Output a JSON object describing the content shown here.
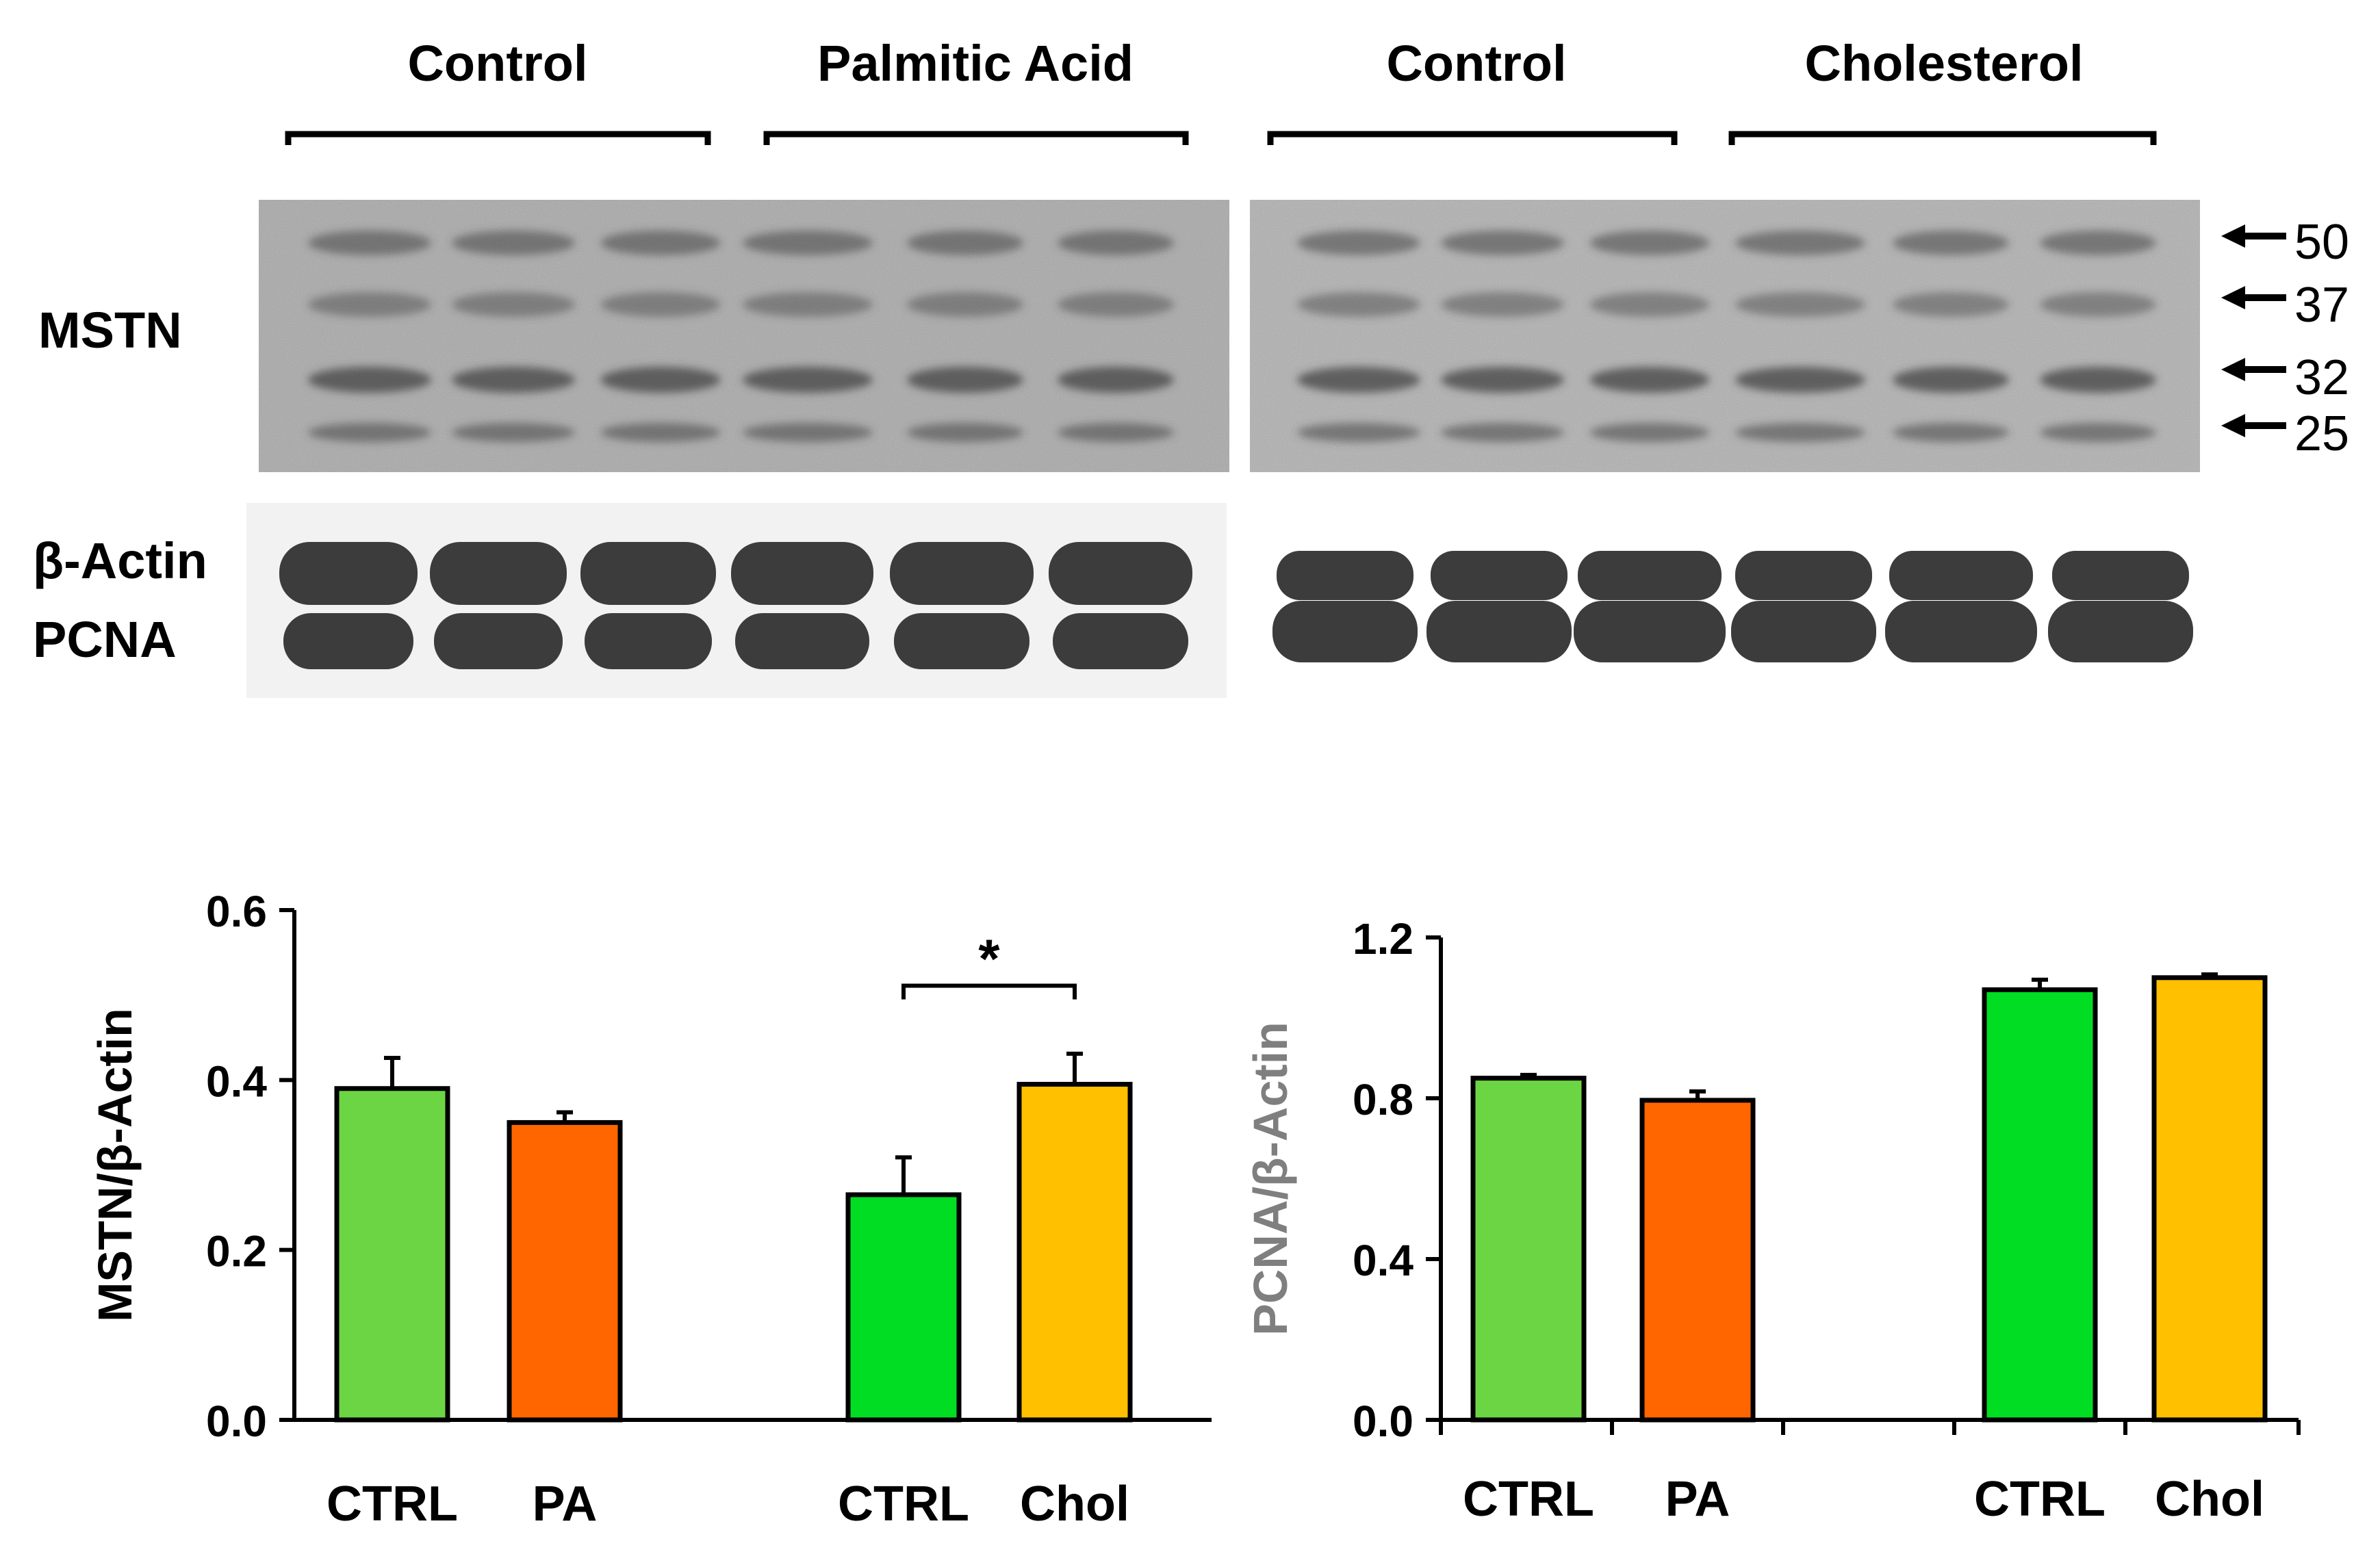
{
  "blot": {
    "group_labels": [
      "Control",
      "Palmitic Acid",
      "Control",
      "Cholesterol"
    ],
    "row_labels": {
      "mstn": "MSTN",
      "actin": "β-Actin",
      "pcna": "PCNA"
    },
    "markers": [
      "50",
      "37",
      "32",
      "25"
    ]
  },
  "colors": {
    "ctrl1": "#6cd544",
    "pa": "#ff6600",
    "ctrl2": "#00dd22",
    "chol": "#ffc000",
    "pcna_ylabel": "#7f7f7f"
  },
  "chart_data": [
    {
      "type": "bar",
      "categories": [
        "CTRL",
        "PA",
        "CTRL",
        "Chol"
      ],
      "values": [
        0.39,
        0.35,
        0.265,
        0.395
      ],
      "errors": [
        0.036,
        0.012,
        0.044,
        0.036
      ],
      "ylabel": "MSTN/β-Actin",
      "ylim": [
        0,
        0.6
      ],
      "yticks": [
        "0.0",
        "0.2",
        "0.4",
        "0.6"
      ],
      "significance": "*",
      "colors": [
        "#6cd544",
        "#ff6600",
        "#00dd22",
        "#ffc000"
      ],
      "grid": false
    },
    {
      "type": "bar",
      "categories": [
        "CTRL",
        "PA",
        "CTRL",
        "Chol"
      ],
      "values": [
        0.85,
        0.795,
        1.07,
        1.1
      ],
      "errors": [
        0.008,
        0.022,
        0.025,
        0.008
      ],
      "ylabel": "PCNA/β-Actin",
      "ylim": [
        0,
        1.2
      ],
      "yticks": [
        "0.0",
        "0.4",
        "0.8",
        "1.2"
      ],
      "colors": [
        "#6cd544",
        "#ff6600",
        "#00dd22",
        "#ffc000"
      ],
      "grid": false
    }
  ]
}
